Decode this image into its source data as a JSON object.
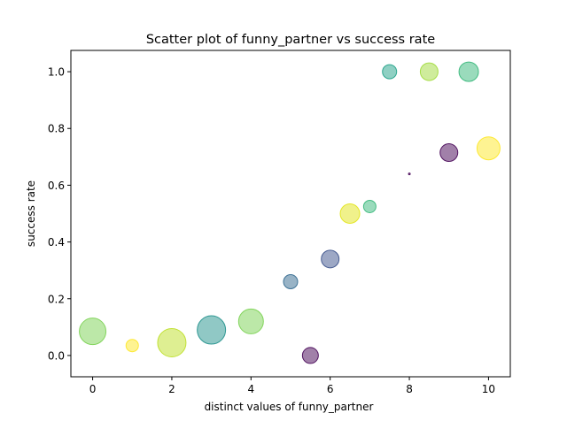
{
  "chart_data": {
    "type": "scatter",
    "title": "Scatter plot of funny_partner vs success rate",
    "xlabel": "distinct values of funny_partner",
    "ylabel": "success rate",
    "xlim": [
      -0.55,
      10.55
    ],
    "ylim": [
      -0.075,
      1.075
    ],
    "xticks": [
      0,
      2,
      4,
      6,
      8,
      10
    ],
    "yticks": [
      0.0,
      0.2,
      0.4,
      0.6,
      0.8,
      1.0
    ],
    "xtick_labels": [
      "0",
      "2",
      "4",
      "6",
      "8",
      "10"
    ],
    "ytick_labels": [
      "0.0",
      "0.2",
      "0.4",
      "0.6",
      "0.8",
      "1.0"
    ],
    "grid": false,
    "marker_alpha": 0.5,
    "points": [
      {
        "x": 0,
        "y": 0.085,
        "size": 15,
        "color": "#7ad151"
      },
      {
        "x": 1,
        "y": 0.035,
        "size": 7,
        "color": "#fde725"
      },
      {
        "x": 2,
        "y": 0.045,
        "size": 16,
        "color": "#bddf26"
      },
      {
        "x": 3,
        "y": 0.09,
        "size": 16,
        "color": "#21918c"
      },
      {
        "x": 4,
        "y": 0.12,
        "size": 14,
        "color": "#7ad151"
      },
      {
        "x": 5,
        "y": 0.26,
        "size": 8,
        "color": "#31688e"
      },
      {
        "x": 5.5,
        "y": 0.0,
        "size": 9,
        "color": "#440154"
      },
      {
        "x": 6,
        "y": 0.34,
        "size": 10,
        "color": "#3b528b"
      },
      {
        "x": 6.5,
        "y": 0.5,
        "size": 11,
        "color": "#e2e418"
      },
      {
        "x": 7,
        "y": 0.525,
        "size": 7,
        "color": "#35b779"
      },
      {
        "x": 7.5,
        "y": 1.0,
        "size": 8,
        "color": "#1fa187"
      },
      {
        "x": 8,
        "y": 0.64,
        "size": 1,
        "color": "#440154"
      },
      {
        "x": 8.5,
        "y": 1.0,
        "size": 10,
        "color": "#a0da39"
      },
      {
        "x": 9,
        "y": 0.715,
        "size": 10,
        "color": "#440154"
      },
      {
        "x": 9.5,
        "y": 1.0,
        "size": 11,
        "color": "#35b779"
      },
      {
        "x": 10,
        "y": 0.73,
        "size": 13,
        "color": "#fde725"
      }
    ]
  }
}
